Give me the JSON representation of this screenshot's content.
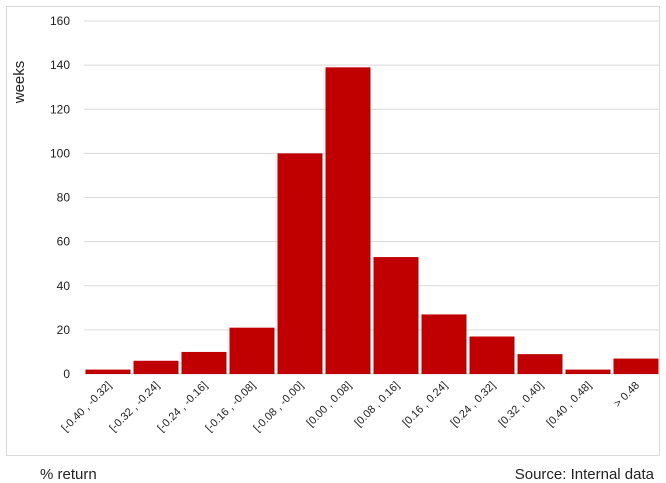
{
  "chart_data": {
    "type": "bar",
    "categories": [
      "[-0.40 , -0.32]",
      "[-0.32 , -0.24]",
      "[-0.24 , -0.16]",
      "[-0.16 , -0.08]",
      "[-0.08 , -0.00]",
      "[0.00 , 0.08]",
      "[0.08 , 0.16]",
      "[0.16 , 0.24]",
      "[0.24 , 0.32]",
      "[0.32 , 0.40]",
      "[0.40 , 0.48]",
      "> 0.48"
    ],
    "values": [
      2,
      6,
      10,
      21,
      100,
      139,
      53,
      27,
      17,
      9,
      2,
      7
    ],
    "ylabel": "weeks",
    "xlabel": "% return",
    "source": "Source: Internal data",
    "ylim": [
      0,
      160
    ],
    "yticks": [
      0,
      20,
      40,
      60,
      80,
      100,
      120,
      140,
      160
    ],
    "grid": true,
    "colors": {
      "bar": "#c00000",
      "grid": "#d9d9d9",
      "text": "#222222"
    }
  }
}
